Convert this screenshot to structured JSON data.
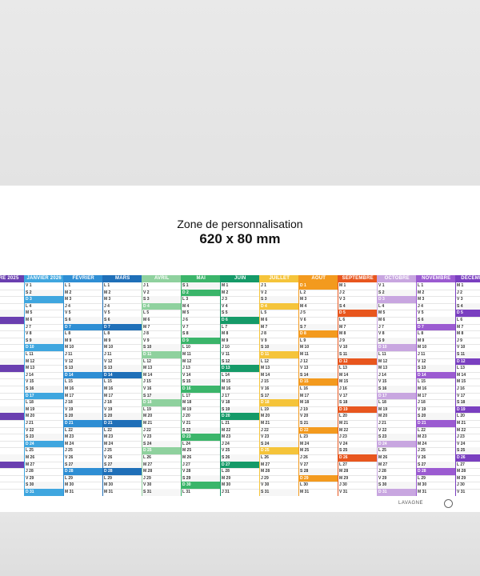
{
  "zone": {
    "label": "Zone de personnalisation",
    "size": "620 x 80 mm"
  },
  "months": [
    {
      "name": "MBRE 2025",
      "color": "#6a3fb0",
      "first_day": 1
    },
    {
      "name": "JANVIER 2026",
      "color": "#3fa6df",
      "first_day": 4
    },
    {
      "name": "FÉVRIER",
      "color": "#2e8ed4",
      "first_day": 0
    },
    {
      "name": "MARS",
      "color": "#1f6fb8",
      "first_day": 0
    },
    {
      "name": "AVRIL",
      "color": "#8fd19e",
      "first_day": 3
    },
    {
      "name": "MAI",
      "color": "#3bb56a",
      "first_day": 5
    },
    {
      "name": "JUIN",
      "color": "#159a68",
      "first_day": 1
    },
    {
      "name": "JUILLET",
      "color": "#f5c43a",
      "first_day": 3
    },
    {
      "name": "AOÛT",
      "color": "#f39a1e",
      "first_day": 6
    },
    {
      "name": "SEPTEMBRE",
      "color": "#e8561e",
      "first_day": 2
    },
    {
      "name": "OCTOBRE",
      "color": "#c8a6e0",
      "first_day": 4
    },
    {
      "name": "NOVEMBRE",
      "color": "#9b5bd1",
      "first_day": 0
    },
    {
      "name": "DÉCEMBRE",
      "color": "#7a3fc0",
      "first_day": 2
    }
  ],
  "weekday_letters": [
    "L",
    "M",
    "M",
    "J",
    "V",
    "S",
    "D"
  ],
  "footer": {
    "brand": "LAVAGNE"
  }
}
